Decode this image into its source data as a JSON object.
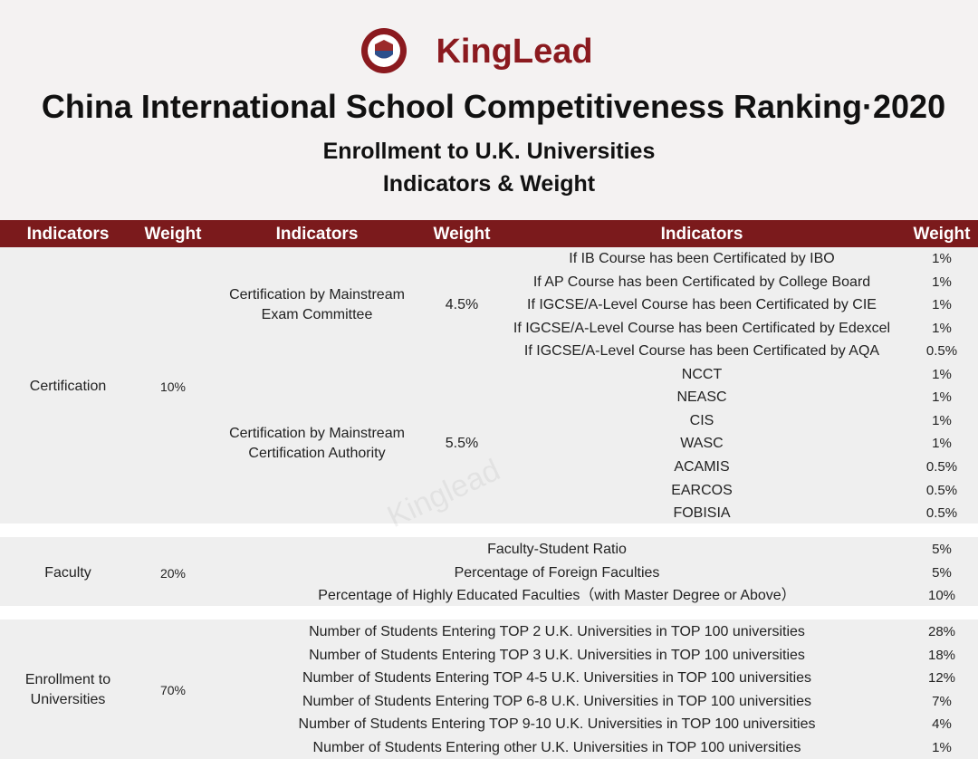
{
  "header": {
    "brand": "KingLead",
    "title": "China International School Competitiveness Ranking·2020",
    "subtitle": [
      "Enrollment to U.K. Universities",
      "Indicators & Weight"
    ]
  },
  "watermark": "Kinglead",
  "table": {
    "columns": [
      "Indicators",
      "Weight",
      "Indicators",
      "Weight",
      "Indicators",
      "Weight"
    ],
    "sections": [
      {
        "indicator": [
          "Certification"
        ],
        "weight": "10%",
        "groups": [
          {
            "indicator": [
              "Certification by Mainstream",
              "Exam Committee"
            ],
            "weight": "4.5%",
            "items": [
              {
                "indicator": "If IB Course has been Certificated by IBO",
                "weight": "1%"
              },
              {
                "indicator": "If AP Course has been Certificated by College Board",
                "weight": "1%"
              },
              {
                "indicator": "If IGCSE/A-Level Course has been Certificated by CIE",
                "weight": "1%"
              },
              {
                "indicator": "If IGCSE/A-Level Course has been Certificated by Edexcel",
                "weight": "1%"
              },
              {
                "indicator": "If IGCSE/A-Level Course has been Certificated by AQA",
                "weight": "0.5%"
              }
            ]
          },
          {
            "indicator": [
              "Certification by Mainstream",
              "Certification Authority"
            ],
            "weight": "5.5%",
            "items": [
              {
                "indicator": "NCCT",
                "weight": "1%"
              },
              {
                "indicator": "NEASC",
                "weight": "1%"
              },
              {
                "indicator": "CIS",
                "weight": "1%"
              },
              {
                "indicator": "WASC",
                "weight": "1%"
              },
              {
                "indicator": "ACAMIS",
                "weight": "0.5%"
              },
              {
                "indicator": "EARCOS",
                "weight": "0.5%"
              },
              {
                "indicator": "FOBISIA",
                "weight": "0.5%"
              }
            ]
          }
        ]
      },
      {
        "indicator": [
          "Faculty"
        ],
        "weight": "20%",
        "items": [
          {
            "indicator": "Faculty-Student Ratio",
            "weight": "5%"
          },
          {
            "indicator": "Percentage of Foreign Faculties",
            "weight": "5%"
          },
          {
            "indicator": "Percentage of Highly Educated Faculties（with Master Degree or Above）",
            "weight": "10%"
          }
        ]
      },
      {
        "indicator": [
          "Enrollment to",
          "Universities"
        ],
        "weight": "70%",
        "items": [
          {
            "indicator": "Number of Students Entering TOP 2 U.K. Universities in TOP 100 universities",
            "weight": "28%"
          },
          {
            "indicator": "Number of Students Entering TOP 3 U.K. Universities in TOP 100 universities",
            "weight": "18%"
          },
          {
            "indicator": "Number of Students Entering TOP 4-5 U.K. Universities in TOP 100 universities",
            "weight": "12%"
          },
          {
            "indicator": "Number of Students Entering TOP 6-8 U.K. Universities in TOP 100 universities",
            "weight": "7%"
          },
          {
            "indicator": "Number of Students Entering TOP 9-10 U.K. Universities in TOP 100 universities",
            "weight": "4%"
          },
          {
            "indicator": "Number of Students Entering other U.K. Universities in TOP 100 universities",
            "weight": "1%"
          }
        ]
      }
    ]
  }
}
